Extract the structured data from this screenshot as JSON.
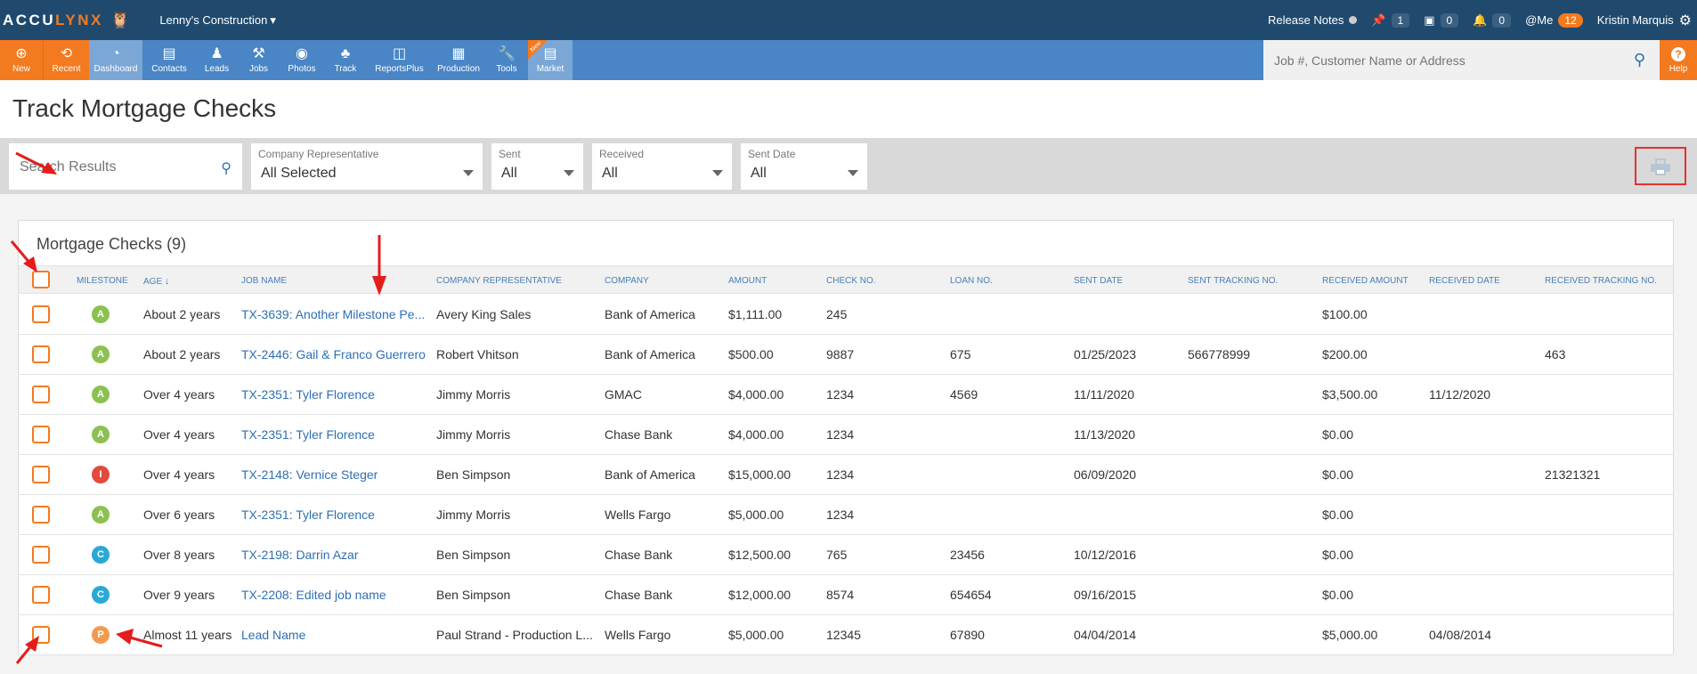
{
  "topbar": {
    "logo_part1": "ACCU",
    "logo_part2": "LYNX",
    "company": "Lenny's Construction",
    "release_notes": "Release Notes",
    "pin_count": "1",
    "calendar_count": "0",
    "bell_count": "0",
    "me_label": "@Me",
    "me_count": "12",
    "user_name": "Kristin Marquis"
  },
  "nav": {
    "new": "New",
    "recent": "Recent",
    "dashboard": "Dashboard",
    "contacts": "Contacts",
    "leads": "Leads",
    "jobs": "Jobs",
    "photos": "Photos",
    "track": "Track",
    "reportsplus": "ReportsPlus",
    "production": "Production",
    "tools": "Tools",
    "market": "Market",
    "new_badge": "New",
    "search_placeholder": "Job #, Customer Name or Address",
    "help": "Help"
  },
  "page_title": "Track Mortgage Checks",
  "filters": {
    "search_placeholder": "Search Results",
    "rep_label": "Company Representative",
    "rep_value": "All Selected",
    "sent_label": "Sent",
    "sent_value": "All",
    "received_label": "Received",
    "received_value": "All",
    "sent_date_label": "Sent Date",
    "sent_date_value": "All"
  },
  "panel_title": "Mortgage Checks (9)",
  "columns": {
    "milestone": "Milestone",
    "age": "Age",
    "job_name": "Job Name",
    "rep": "Company Representative",
    "company": "Company",
    "amount": "Amount",
    "check_no": "Check No.",
    "loan_no": "Loan No.",
    "sent_date": "Sent Date",
    "sent_tracking": "Sent Tracking No.",
    "received_amount": "Received Amount",
    "received_date": "Received Date",
    "received_tracking": "Received Tracking No."
  },
  "rows": [
    {
      "ms": "A",
      "age": "About 2 years",
      "job": "TX-3639: Another Milestone Pe...",
      "rep": "Avery King Sales",
      "company": "Bank of America",
      "amount": "$1,111.00",
      "check": "245",
      "loan": "",
      "sent_date": "",
      "sent_track": "",
      "recv_amount": "$100.00",
      "recv_date": "",
      "recv_track": ""
    },
    {
      "ms": "A",
      "age": "About 2 years",
      "job": "TX-2446: Gail & Franco Guerrero",
      "rep": "Robert Vhitson",
      "company": "Bank of America",
      "amount": "$500.00",
      "check": "9887",
      "loan": "675",
      "sent_date": "01/25/2023",
      "sent_track": "566778999",
      "recv_amount": "$200.00",
      "recv_date": "",
      "recv_track": "463"
    },
    {
      "ms": "A",
      "age": "Over 4 years",
      "job": "TX-2351: Tyler Florence",
      "rep": "Jimmy Morris",
      "company": "GMAC",
      "amount": "$4,000.00",
      "check": "1234",
      "loan": "4569",
      "sent_date": "11/11/2020",
      "sent_track": "",
      "recv_amount": "$3,500.00",
      "recv_date": "11/12/2020",
      "recv_track": ""
    },
    {
      "ms": "A",
      "age": "Over 4 years",
      "job": "TX-2351: Tyler Florence",
      "rep": "Jimmy Morris",
      "company": "Chase Bank",
      "amount": "$4,000.00",
      "check": "1234",
      "loan": "",
      "sent_date": "11/13/2020",
      "sent_track": "",
      "recv_amount": "$0.00",
      "recv_date": "",
      "recv_track": ""
    },
    {
      "ms": "I",
      "age": "Over 4 years",
      "job": "TX-2148: Vernice Steger",
      "rep": "Ben Simpson",
      "company": "Bank of America",
      "amount": "$15,000.00",
      "check": "1234",
      "loan": "",
      "sent_date": "06/09/2020",
      "sent_track": "",
      "recv_amount": "$0.00",
      "recv_date": "",
      "recv_track": "21321321"
    },
    {
      "ms": "A",
      "age": "Over 6 years",
      "job": "TX-2351: Tyler Florence",
      "rep": "Jimmy Morris",
      "company": "Wells Fargo",
      "amount": "$5,000.00",
      "check": "1234",
      "loan": "",
      "sent_date": "",
      "sent_track": "",
      "recv_amount": "$0.00",
      "recv_date": "",
      "recv_track": ""
    },
    {
      "ms": "C",
      "age": "Over 8 years",
      "job": "TX-2198: Darrin Azar",
      "rep": "Ben Simpson",
      "company": "Chase Bank",
      "amount": "$12,500.00",
      "check": "765",
      "loan": "23456",
      "sent_date": "10/12/2016",
      "sent_track": "",
      "recv_amount": "$0.00",
      "recv_date": "",
      "recv_track": ""
    },
    {
      "ms": "C",
      "age": "Over 9 years",
      "job": "TX-2208: Edited job name",
      "rep": "Ben Simpson",
      "company": "Chase Bank",
      "amount": "$12,000.00",
      "check": "8574",
      "loan": "654654",
      "sent_date": "09/16/2015",
      "sent_track": "",
      "recv_amount": "$0.00",
      "recv_date": "",
      "recv_track": ""
    },
    {
      "ms": "P",
      "age": "Almost 11 years",
      "job": "Lead Name",
      "rep": "Paul Strand - Production L...",
      "company": "Wells Fargo",
      "amount": "$5,000.00",
      "check": "12345",
      "loan": "67890",
      "sent_date": "04/04/2014",
      "sent_track": "",
      "recv_amount": "$5,000.00",
      "recv_date": "04/08/2014",
      "recv_track": ""
    }
  ],
  "milestone_colors": {
    "A": "#8cc152",
    "I": "#e04b3c",
    "C": "#29a9d6",
    "P": "#f29b50"
  },
  "accent_color": "#f47a20"
}
